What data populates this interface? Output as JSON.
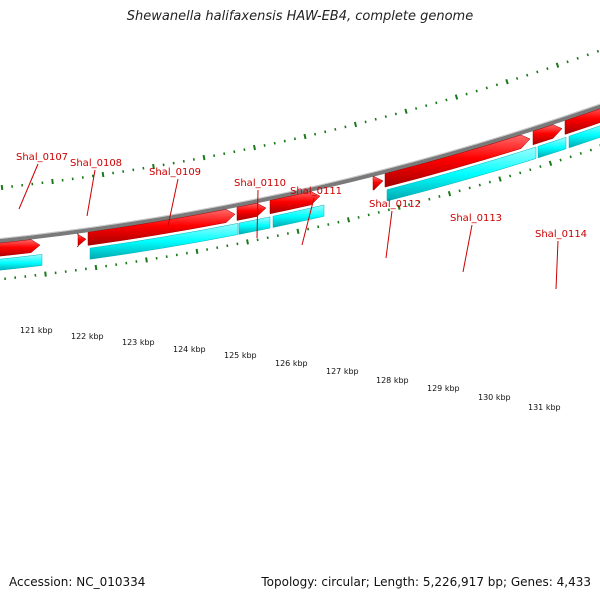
{
  "title": "Shewanella halifaxensis HAW-EB4, complete genome",
  "accession": "Accession: NC_010334",
  "summary": "Topology: circular; Length: 5,226,917 bp; Genes: 4,433",
  "colors": {
    "cds": "#ff0000",
    "cds_dark": "#b30000",
    "gene_feature": "#00ffff",
    "backbone": "#7a7a7a",
    "ticks": "#1a7a1a",
    "label": "#cc0000"
  },
  "genes": [
    {
      "name": "Shal_0107"
    },
    {
      "name": "Shal_0108"
    },
    {
      "name": "Shal_0109"
    },
    {
      "name": "Shal_0110"
    },
    {
      "name": "Shal_0111"
    },
    {
      "name": "Shal_0112"
    },
    {
      "name": "Shal_0113"
    },
    {
      "name": "Shal_0114"
    }
  ],
  "ruler": {
    "labels": [
      "121 kbp",
      "122 kbp",
      "123 kbp",
      "124 kbp",
      "125 kbp",
      "126 kbp",
      "127 kbp",
      "128 kbp",
      "129 kbp",
      "130 kbp",
      "131 kbp"
    ]
  }
}
